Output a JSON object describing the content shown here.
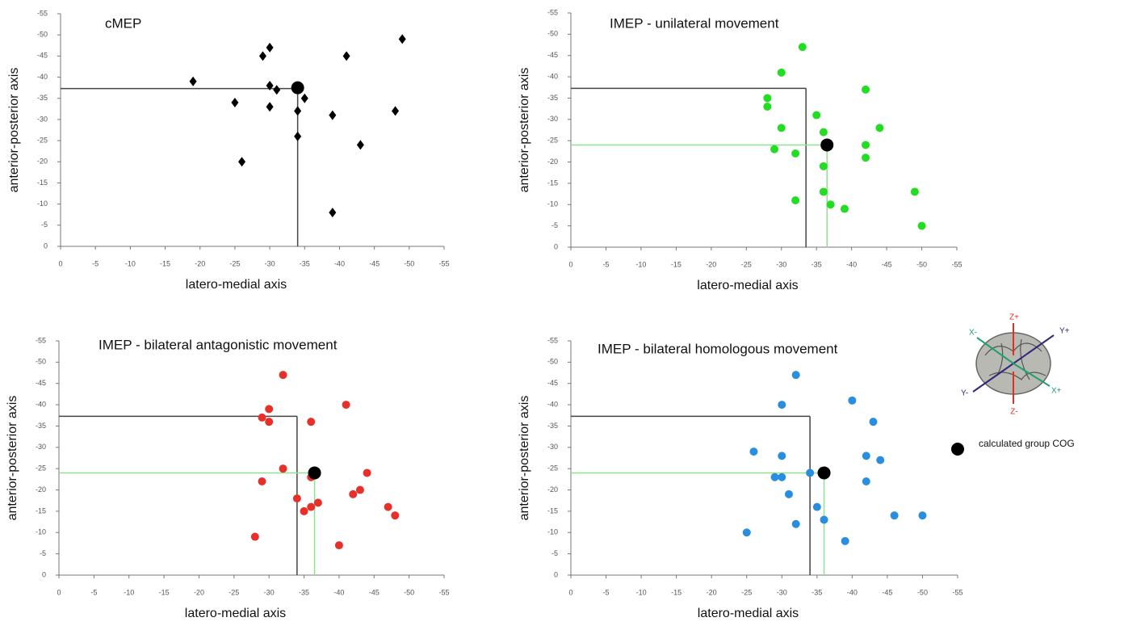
{
  "chart_data": [
    {
      "type": "scatter",
      "title": "cMEP",
      "x_label": "latero-medial axis",
      "y_label": "anterior-posterior axis",
      "xlim": [
        0,
        -55
      ],
      "ylim": [
        0,
        -55
      ],
      "xticks": [
        0,
        -5,
        -10,
        -15,
        -20,
        -25,
        -30,
        -35,
        -40,
        -45,
        -50,
        -55
      ],
      "yticks": [
        0,
        -5,
        -10,
        -15,
        -20,
        -25,
        -30,
        -35,
        -40,
        -45,
        -50,
        -55
      ],
      "series": [
        {
          "color": "#000000",
          "marker": "diamond",
          "x": [
            -19,
            -25,
            -26,
            -29,
            -30,
            -30,
            -30,
            -31,
            -34,
            -34,
            -35,
            -39,
            -39,
            -41,
            -43,
            -48,
            -49
          ],
          "values": [
            -39,
            -34,
            -20,
            -45,
            -47,
            -38,
            -33,
            -37,
            -32,
            -26,
            -35,
            -31,
            -8,
            -45,
            -24,
            -32,
            -49
          ]
        }
      ],
      "guides": [
        {
          "color": "#444444",
          "x": -34,
          "y": -37.3
        }
      ],
      "cog": {
        "color": "#000000",
        "x": -34,
        "y": -37.5
      }
    },
    {
      "type": "scatter",
      "title": "IMEP - unilateral movement",
      "x_label": "latero-medial axis",
      "y_label": "anterior-posterior axis",
      "xlim": [
        0,
        -55
      ],
      "ylim": [
        0,
        -55
      ],
      "xticks": [
        0,
        -5,
        -10,
        -15,
        -20,
        -25,
        -30,
        -35,
        -40,
        -45,
        -50,
        -55
      ],
      "yticks": [
        0,
        -5,
        -10,
        -15,
        -20,
        -25,
        -30,
        -35,
        -40,
        -45,
        -50,
        -55
      ],
      "series": [
        {
          "color": "#22dd22",
          "marker": "circle",
          "x": [
            -28,
            -28,
            -29,
            -30,
            -30,
            -32,
            -32,
            -33,
            -35,
            -36,
            -36,
            -36,
            -37,
            -39,
            -42,
            -42,
            -42,
            -44,
            -49,
            -50
          ],
          "values": [
            -35,
            -33,
            -23,
            -41,
            -28,
            -22,
            -11,
            -47,
            -31,
            -27,
            -19,
            -13,
            -10,
            -9,
            -37,
            -24,
            -21,
            -28,
            -13,
            -5
          ]
        }
      ],
      "guides": [
        {
          "color": "#444444",
          "x": -33.5,
          "y": -37.3
        },
        {
          "color": "#8fe08f",
          "x": -36.5,
          "y": -24
        }
      ],
      "cog": {
        "color": "#000000",
        "x": -36.5,
        "y": -24
      }
    },
    {
      "type": "scatter",
      "title": "IMEP  - bilateral antagonistic movement",
      "x_label": "latero-medial axis",
      "y_label": "anterior-posterior axis",
      "xlim": [
        0,
        -55
      ],
      "ylim": [
        0,
        -55
      ],
      "xticks": [
        0,
        -5,
        -10,
        -15,
        -20,
        -25,
        -30,
        -35,
        -40,
        -45,
        -50,
        -55
      ],
      "yticks": [
        0,
        -5,
        -10,
        -15,
        -20,
        -25,
        -30,
        -35,
        -40,
        -45,
        -50,
        -55
      ],
      "series": [
        {
          "color": "#e8302a",
          "marker": "circle",
          "x": [
            -28,
            -29,
            -29,
            -30,
            -30,
            -32,
            -32,
            -34,
            -35,
            -36,
            -36,
            -36,
            -37,
            -40,
            -41,
            -42,
            -43,
            -44,
            -47,
            -48
          ],
          "values": [
            -9,
            -37,
            -22,
            -39,
            -36,
            -47,
            -25,
            -18,
            -15,
            -36,
            -23,
            -16,
            -17,
            -7,
            -40,
            -19,
            -20,
            -24,
            -16,
            -14
          ]
        }
      ],
      "guides": [
        {
          "color": "#444444",
          "x": -34,
          "y": -37.3
        },
        {
          "color": "#8fe08f",
          "x": -36.5,
          "y": -24
        }
      ],
      "cog": {
        "color": "#000000",
        "x": -36.5,
        "y": -24
      }
    },
    {
      "type": "scatter",
      "title": "IMEP - bilateral homologous movement",
      "x_label": "latero-medial axis",
      "y_label": "anterior-posterior axis",
      "xlim": [
        0,
        -55
      ],
      "ylim": [
        0,
        -55
      ],
      "xticks": [
        0,
        -5,
        -10,
        -15,
        -20,
        -25,
        -30,
        -35,
        -40,
        -45,
        -50,
        -55
      ],
      "yticks": [
        0,
        -5,
        -10,
        -15,
        -20,
        -25,
        -30,
        -35,
        -40,
        -45,
        -50,
        -55
      ],
      "series": [
        {
          "color": "#2a8ee0",
          "marker": "circle",
          "x": [
            -25,
            -26,
            -29,
            -30,
            -30,
            -30,
            -31,
            -32,
            -32,
            -34,
            -35,
            -36,
            -39,
            -40,
            -42,
            -42,
            -43,
            -44,
            -46,
            -50
          ],
          "values": [
            -10,
            -29,
            -23,
            -40,
            -28,
            -23,
            -19,
            -47,
            -12,
            -24,
            -16,
            -13,
            -8,
            -41,
            -28,
            -22,
            -36,
            -27,
            -14,
            -14
          ]
        }
      ],
      "guides": [
        {
          "color": "#444444",
          "x": -34,
          "y": -37.3
        },
        {
          "color": "#8fe08f",
          "x": -36,
          "y": -24
        }
      ],
      "cog": {
        "color": "#000000",
        "x": -36,
        "y": -24
      }
    }
  ],
  "legend": {
    "label": "calculated group COG",
    "color": "#000000"
  },
  "icon_labels": {
    "z_plus": "Z+",
    "z_minus": "Z-",
    "y_plus": "Y+",
    "y_minus": "Y-",
    "x_plus": "X+",
    "x_minus": "X-"
  }
}
